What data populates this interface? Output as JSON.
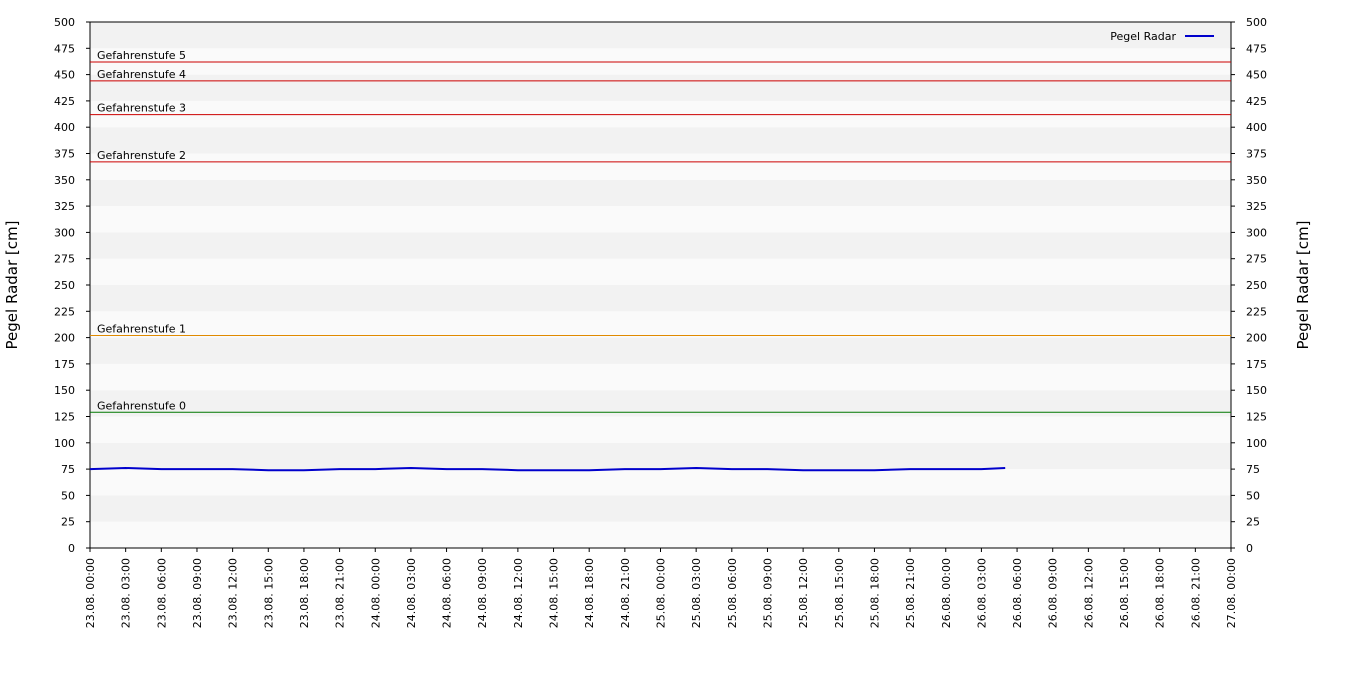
{
  "chart_data": {
    "type": "line",
    "ylabel": "Pegel Radar [cm]",
    "y2label": "Pegel Radar [cm]",
    "xlim": [
      "23.08. 00:00",
      "27.08. 00:00"
    ],
    "xticks": [
      "23.08. 00:00",
      "23.08. 03:00",
      "23.08. 06:00",
      "23.08. 09:00",
      "23.08. 12:00",
      "23.08. 15:00",
      "23.08. 18:00",
      "23.08. 21:00",
      "24.08. 00:00",
      "24.08. 03:00",
      "24.08. 06:00",
      "24.08. 09:00",
      "24.08. 12:00",
      "24.08. 15:00",
      "24.08. 18:00",
      "24.08. 21:00",
      "25.08. 00:00",
      "25.08. 03:00",
      "25.08. 06:00",
      "25.08. 09:00",
      "25.08. 12:00",
      "25.08. 15:00",
      "25.08. 18:00",
      "25.08. 21:00",
      "26.08. 00:00",
      "26.08. 03:00",
      "26.08. 06:00",
      "26.08. 09:00",
      "26.08. 12:00",
      "26.08. 15:00",
      "26.08. 18:00",
      "26.08. 21:00",
      "27.08. 00:00"
    ],
    "ylim": [
      0,
      500
    ],
    "yticks": [
      0,
      25,
      50,
      75,
      100,
      125,
      150,
      175,
      200,
      225,
      250,
      275,
      300,
      325,
      350,
      375,
      400,
      425,
      450,
      475,
      500
    ],
    "y2lim": [
      0,
      500
    ],
    "y2ticks": [
      0,
      25,
      50,
      75,
      100,
      125,
      150,
      175,
      200,
      225,
      250,
      275,
      300,
      325,
      350,
      375,
      400,
      425,
      450,
      475,
      500
    ],
    "x": [
      "23.08. 00:00",
      "23.08. 03:00",
      "23.08. 06:00",
      "23.08. 09:00",
      "23.08. 12:00",
      "23.08. 15:00",
      "23.08. 18:00",
      "23.08. 21:00",
      "24.08. 00:00",
      "24.08. 03:00",
      "24.08. 06:00",
      "24.08. 09:00",
      "24.08. 12:00",
      "24.08. 15:00",
      "24.08. 18:00",
      "24.08. 21:00",
      "25.08. 00:00",
      "25.08. 03:00",
      "25.08. 06:00",
      "25.08. 09:00",
      "25.08. 12:00",
      "25.08. 15:00",
      "25.08. 18:00",
      "25.08. 21:00",
      "26.08. 00:00",
      "26.08. 03:00",
      "26.08. 05:00"
    ],
    "series": [
      {
        "name": "Pegel Radar",
        "color": "#0000cc",
        "values": [
          75,
          76,
          75,
          75,
          75,
          74,
          74,
          75,
          75,
          76,
          75,
          75,
          74,
          74,
          74,
          75,
          75,
          76,
          75,
          75,
          74,
          74,
          74,
          75,
          75,
          75,
          76
        ]
      }
    ],
    "annotations": [
      {
        "label": "Gefahrenstufe 5",
        "value": 462,
        "color": "#cc0000"
      },
      {
        "label": "Gefahrenstufe 4",
        "value": 444,
        "color": "#cc0000"
      },
      {
        "label": "Gefahrenstufe 3",
        "value": 412,
        "color": "#cc0000"
      },
      {
        "label": "Gefahrenstufe 2",
        "value": 367,
        "color": "#cc0000"
      },
      {
        "label": "Gefahrenstufe 1",
        "value": 202,
        "color": "#e08a00"
      },
      {
        "label": "Gefahrenstufe 0",
        "value": 129,
        "color": "#007700"
      }
    ],
    "legend": "upper right"
  }
}
